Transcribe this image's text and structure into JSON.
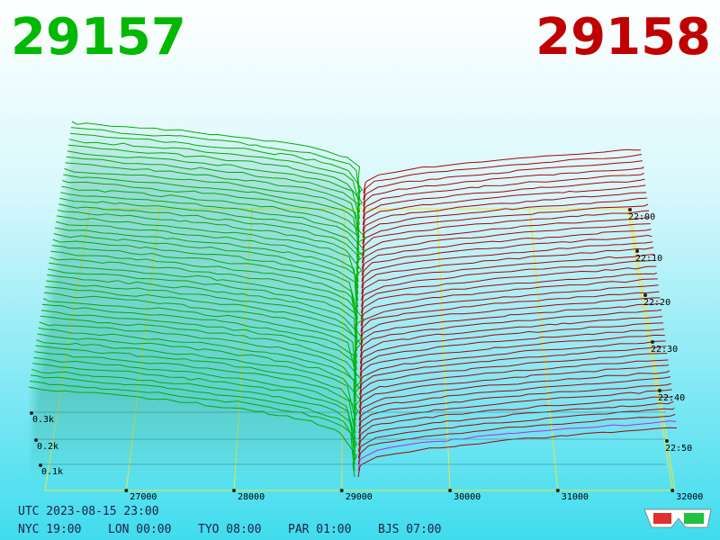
{
  "header": {
    "bid": "29157",
    "ask": "29158"
  },
  "price_axis": [
    "27000",
    "28000",
    "29000",
    "30000",
    "31000",
    "32000"
  ],
  "depth_axis": [
    "0.3k",
    "0.2k",
    "0.1k"
  ],
  "time_axis": [
    "22:00",
    "22:10",
    "22:20",
    "22:30",
    "22:40",
    "22:50"
  ],
  "footer": {
    "utc": "UTC 2023-08-15 23:00",
    "zones": [
      "NYC 19:00",
      "LON 00:00",
      "TYO 08:00",
      "PAR 01:00",
      "BJS 07:00"
    ]
  }
}
